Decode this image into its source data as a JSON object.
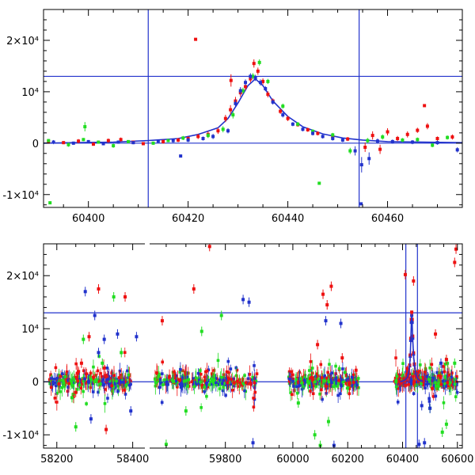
{
  "chart_data": [
    {
      "type": "scatter",
      "title": "",
      "xlabel": "",
      "ylabel": "",
      "xlim": [
        60391,
        60475
      ],
      "ylim": [
        -12500,
        26000
      ],
      "x_ticks": [
        60400,
        60420,
        60440,
        60460
      ],
      "x_tick_labels": [
        "60400",
        "60420",
        "60440",
        "60460"
      ],
      "y_ticks": [
        -10000,
        0,
        10000,
        20000
      ],
      "y_tick_labels": [
        "-1×10⁴",
        "0",
        "10⁴",
        "2×10⁴"
      ],
      "vertical_lines": [
        60412,
        60454.3
      ],
      "horizontal_lines": [
        0,
        13000
      ],
      "colors": {
        "red": "#ee1111",
        "green": "#22dd22",
        "blue": "#2233cc"
      },
      "model": {
        "name": "",
        "color": "#2233cc",
        "x": [
          60391,
          60405,
          60412,
          60418,
          60422,
          60426,
          60428,
          60430,
          60432,
          60433.5,
          60435,
          60437,
          60440,
          60443,
          60447,
          60451,
          60455,
          60460,
          60475
        ],
        "y": [
          0,
          200,
          500,
          900,
          1700,
          3000,
          4800,
          7800,
          11200,
          12500,
          11200,
          8200,
          5200,
          3200,
          1800,
          1000,
          600,
          300,
          100
        ]
      },
      "series": [
        {
          "color": "#ee1111",
          "x": [
            60392,
            60395,
            60398,
            60401,
            60404,
            60406.5,
            60409,
            60411,
            60415,
            60418,
            60420,
            60422,
            60424,
            60426,
            60427.5,
            60428.5,
            60429.5,
            60430.5,
            60431.5,
            60432.5,
            60433.2,
            60434,
            60435,
            60436,
            60437,
            60438.5,
            60440,
            60442,
            60444,
            60446,
            60449,
            60452,
            60455.5,
            60457,
            60458.5,
            60460,
            60462,
            60464,
            60466,
            60468,
            60470,
            60473,
            60421.5,
            60428.6,
            60467.4
          ],
          "y": [
            300,
            100,
            400,
            -200,
            500,
            700,
            200,
            -100,
            300,
            600,
            900,
            1300,
            1700,
            2400,
            4800,
            6500,
            8200,
            9800,
            11000,
            12500,
            15500,
            14000,
            12000,
            9500,
            8200,
            6200,
            4800,
            3600,
            2600,
            1900,
            1200,
            800,
            -800,
            1500,
            -1200,
            2200,
            900,
            1700,
            2500,
            3300,
            900,
            1200,
            20200,
            12200,
            7300
          ],
          "err": [
            400,
            300,
            400,
            300,
            400,
            400,
            300,
            300,
            400,
            400,
            400,
            500,
            600,
            600,
            700,
            900,
            800,
            800,
            700,
            700,
            800,
            700,
            600,
            600,
            500,
            500,
            500,
            400,
            400,
            400,
            400,
            400,
            900,
            800,
            900,
            700,
            500,
            600,
            500,
            600,
            400,
            500,
            0,
            1200,
            0
          ]
        },
        {
          "color": "#22dd22",
          "x": [
            60392,
            60396,
            60399,
            60402,
            60405,
            60408,
            60413,
            60416,
            60419,
            60424,
            60427,
            60429,
            60431,
            60433,
            60434.3,
            60436,
            60439,
            60442,
            60445,
            60446.3,
            60449,
            60452.5,
            60456,
            60459,
            60463,
            60466,
            60469,
            60472,
            60399.3,
            60392.3
          ],
          "y": [
            500,
            -300,
            700,
            200,
            -500,
            300,
            0,
            500,
            1000,
            1500,
            2700,
            5500,
            10200,
            13000,
            15700,
            12000,
            7200,
            3700,
            2300,
            -7800,
            1600,
            -1500,
            500,
            1200,
            600,
            700,
            -400,
            1100,
            3200,
            -11600
          ],
          "err": [
            300,
            400,
            300,
            300,
            400,
            300,
            300,
            300,
            400,
            500,
            600,
            700,
            600,
            600,
            600,
            500,
            500,
            400,
            400,
            0,
            400,
            600,
            500,
            500,
            400,
            400,
            400,
            400,
            900,
            0
          ]
        },
        {
          "color": "#2233cc",
          "x": [
            60393,
            60397,
            60400,
            60403,
            60406,
            60409,
            60414,
            60417,
            60420,
            60423,
            60425,
            60428,
            60429.5,
            60430.5,
            60431.5,
            60432.5,
            60433.5,
            60434.5,
            60435.5,
            60437,
            60439,
            60441,
            60443,
            60445,
            60447,
            60449,
            60451,
            60453.5,
            60454.8,
            60456.3,
            60458,
            60461,
            60465,
            60470,
            60474,
            60418.5,
            60454.7
          ],
          "y": [
            200,
            0,
            300,
            -100,
            200,
            100,
            400,
            500,
            600,
            900,
            1300,
            2400,
            7700,
            10200,
            11800,
            13000,
            12700,
            11800,
            10600,
            8000,
            5500,
            3700,
            2700,
            1900,
            1300,
            900,
            600,
            -1500,
            -4200,
            -3000,
            400,
            300,
            200,
            100,
            -1300,
            -2500,
            -11800
          ],
          "err": [
            400,
            300,
            300,
            300,
            300,
            300,
            300,
            400,
            400,
            400,
            500,
            500,
            700,
            700,
            600,
            600,
            600,
            600,
            500,
            500,
            500,
            400,
            400,
            400,
            400,
            400,
            400,
            900,
            1500,
            1200,
            500,
            400,
            400,
            400,
            500,
            0,
            0
          ]
        }
      ]
    },
    {
      "type": "scatter",
      "title": "",
      "xlabel": "",
      "ylabel": "",
      "segments": [
        {
          "xlim": [
            58165,
            58430
          ]
        },
        {
          "xlim": [
            59610,
            59905
          ]
        },
        {
          "xlim": [
            59905,
            60260
          ]
        },
        {
          "xlim": [
            60260,
            60618
          ]
        }
      ],
      "x_ticks": [
        58200,
        58400,
        59800,
        60000,
        60200,
        60400,
        60600
      ],
      "x_tick_labels": [
        "58200",
        "58400",
        "59800",
        "60000",
        "60200",
        "60400",
        "60600"
      ],
      "ylim": [
        -12500,
        26000
      ],
      "y_ticks": [
        -10000,
        0,
        10000,
        20000
      ],
      "y_tick_labels": [
        "-1×10⁴",
        "0",
        "10⁴",
        "2×10⁴"
      ],
      "vertical_lines": [
        60412,
        60454.3
      ],
      "horizontal_lines": [
        0,
        13000
      ],
      "colors": {
        "red": "#ee1111",
        "green": "#22dd22",
        "blue": "#2233cc"
      },
      "seasons": [
        {
          "range": [
            58180,
            58395
          ],
          "segment": 0
        },
        {
          "range": [
            59620,
            59880
          ],
          "segment": 1
        },
        {
          "range": [
            59985,
            60240
          ],
          "segment": 2
        },
        {
          "range": [
            60370,
            60600
          ],
          "segment": 3
        }
      ],
      "outliers": [
        {
          "color": "#ee1111",
          "x": [
            58285,
            58310,
            58265,
            58330,
            59640,
            59720,
            59760,
            60110,
            60140,
            60125,
            60090,
            60180,
            60410,
            60440,
            60590,
            60595,
            60520,
            60560,
            58380,
            58250
          ],
          "y": [
            8500,
            17500,
            3500,
            -9000,
            11500,
            17500,
            25500,
            16500,
            18000,
            14500,
            7000,
            4500,
            20200,
            19000,
            22500,
            25000,
            9000,
            4200,
            16000,
            -2000
          ]
        },
        {
          "color": "#22dd22",
          "x": [
            58240,
            58270,
            58350,
            58370,
            58320,
            58250,
            59700,
            59740,
            59790,
            60080,
            60100,
            60130,
            60500,
            60560,
            60590,
            60545,
            59650,
            60020
          ],
          "y": [
            -3000,
            8000,
            16000,
            5500,
            3500,
            -8500,
            -5500,
            9500,
            12500,
            -10000,
            -12000,
            -7500,
            -5000,
            -8000,
            3500,
            -9500,
            -11800,
            -4000
          ]
        },
        {
          "color": "#2233cc",
          "x": [
            58275,
            58300,
            58325,
            58290,
            58395,
            58410,
            59845,
            59860,
            59870,
            60120,
            60175,
            60150,
            60500,
            60480,
            60460,
            60540,
            60470,
            58360,
            58310
          ],
          "y": [
            17000,
            12500,
            8000,
            -7000,
            -5500,
            8500,
            15500,
            15000,
            -11500,
            11500,
            11000,
            -12000,
            -5000,
            -11500,
            -11800,
            3500,
            -4500,
            9000,
            5500
          ]
        }
      ]
    }
  ]
}
